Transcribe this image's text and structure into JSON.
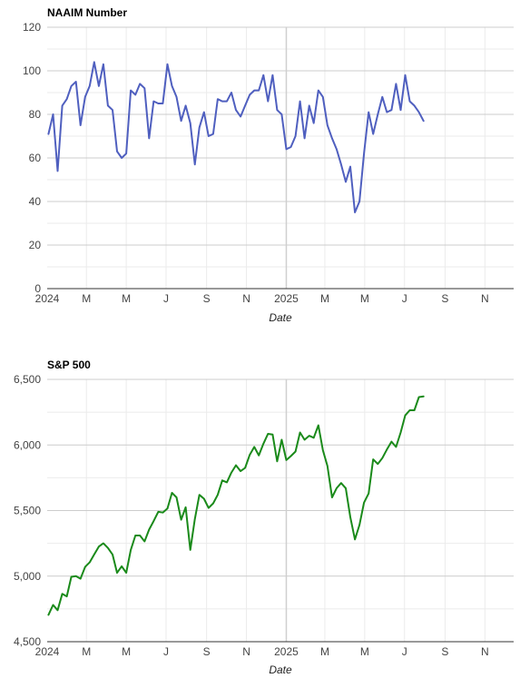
{
  "chart_data": [
    {
      "type": "line",
      "title": "NAAIM Number",
      "xlabel": "Date",
      "ylabel": "",
      "ylim": [
        0,
        120
      ],
      "yticks": [
        "0",
        "20",
        "40",
        "60",
        "80",
        "100",
        "120"
      ],
      "x_range": [
        "2024-01-01",
        "2025-12-15"
      ],
      "xticks": [
        {
          "label": "2024",
          "date": "2024-01-01"
        },
        {
          "label": "M",
          "date": "2024-03-01"
        },
        {
          "label": "M",
          "date": "2024-05-01"
        },
        {
          "label": "J",
          "date": "2024-07-01"
        },
        {
          "label": "S",
          "date": "2024-09-01"
        },
        {
          "label": "N",
          "date": "2024-11-01"
        },
        {
          "label": "2025",
          "date": "2025-01-01"
        },
        {
          "label": "M",
          "date": "2025-03-01"
        },
        {
          "label": "M",
          "date": "2025-05-01"
        },
        {
          "label": "J",
          "date": "2025-07-01"
        },
        {
          "label": "S",
          "date": "2025-09-01"
        },
        {
          "label": "N",
          "date": "2025-11-01"
        }
      ],
      "grid": true,
      "color": "#4f5fbf",
      "series": [
        {
          "x": [
            "2024-01-03",
            "2024-01-10",
            "2024-01-17",
            "2024-01-24",
            "2024-01-31",
            "2024-02-07",
            "2024-02-14",
            "2024-02-21",
            "2024-02-28",
            "2024-03-06",
            "2024-03-13",
            "2024-03-20",
            "2024-03-27",
            "2024-04-03",
            "2024-04-10",
            "2024-04-17",
            "2024-04-24",
            "2024-05-01",
            "2024-05-08",
            "2024-05-15",
            "2024-05-22",
            "2024-05-29",
            "2024-06-05",
            "2024-06-12",
            "2024-06-19",
            "2024-06-26",
            "2024-07-03",
            "2024-07-10",
            "2024-07-17",
            "2024-07-24",
            "2024-07-31",
            "2024-08-07",
            "2024-08-14",
            "2024-08-21",
            "2024-08-28",
            "2024-09-04",
            "2024-09-11",
            "2024-09-18",
            "2024-09-25",
            "2024-10-02",
            "2024-10-09",
            "2024-10-16",
            "2024-10-23",
            "2024-10-30",
            "2024-11-06",
            "2024-11-13",
            "2024-11-20",
            "2024-11-27",
            "2024-12-04",
            "2024-12-11",
            "2024-12-18",
            "2024-12-25",
            "2025-01-01",
            "2025-01-08",
            "2025-01-15",
            "2025-01-22",
            "2025-01-29",
            "2025-02-05",
            "2025-02-12",
            "2025-02-19",
            "2025-02-26",
            "2025-03-05",
            "2025-03-12",
            "2025-03-19",
            "2025-03-26",
            "2025-04-02",
            "2025-04-09",
            "2025-04-16",
            "2025-04-23",
            "2025-04-30",
            "2025-05-07",
            "2025-05-14",
            "2025-05-21",
            "2025-05-28",
            "2025-06-04",
            "2025-06-11",
            "2025-06-18",
            "2025-06-25",
            "2025-07-02",
            "2025-07-09",
            "2025-07-16",
            "2025-07-23",
            "2025-07-30"
          ],
          "values": [
            71,
            80,
            54,
            84,
            87,
            93,
            95,
            75,
            88,
            93,
            104,
            93,
            103,
            84,
            82,
            63,
            60,
            62,
            91,
            89,
            94,
            92,
            69,
            86,
            85,
            85,
            103,
            93,
            88,
            77,
            84,
            76,
            57,
            74,
            81,
            70,
            71,
            87,
            86,
            86,
            90,
            82,
            79,
            84,
            89,
            91,
            91,
            98,
            86,
            98,
            82,
            80,
            64,
            65,
            70,
            86,
            69,
            84,
            76,
            91,
            88,
            75,
            69,
            64,
            57,
            49,
            56,
            35,
            40,
            62,
            81,
            71,
            80,
            88,
            81,
            82,
            94,
            82,
            98,
            86,
            84,
            81,
            77
          ]
        }
      ]
    },
    {
      "type": "line",
      "title": "S&P 500",
      "xlabel": "Date",
      "ylabel": "",
      "ylim": [
        4500,
        6500
      ],
      "yticks": [
        "4,500",
        "5,000",
        "5,500",
        "6,000",
        "6,500"
      ],
      "x_range": [
        "2024-01-01",
        "2025-12-15"
      ],
      "xticks": [
        {
          "label": "2024",
          "date": "2024-01-01"
        },
        {
          "label": "M",
          "date": "2024-03-01"
        },
        {
          "label": "M",
          "date": "2024-05-01"
        },
        {
          "label": "J",
          "date": "2024-07-01"
        },
        {
          "label": "S",
          "date": "2024-09-01"
        },
        {
          "label": "N",
          "date": "2024-11-01"
        },
        {
          "label": "2025",
          "date": "2025-01-01"
        },
        {
          "label": "M",
          "date": "2025-03-01"
        },
        {
          "label": "M",
          "date": "2025-05-01"
        },
        {
          "label": "J",
          "date": "2025-07-01"
        },
        {
          "label": "S",
          "date": "2025-09-01"
        },
        {
          "label": "N",
          "date": "2025-11-01"
        }
      ],
      "grid": true,
      "color": "#1a8a1a",
      "series": [
        {
          "x": [
            "2024-01-03",
            "2024-01-10",
            "2024-01-17",
            "2024-01-24",
            "2024-01-31",
            "2024-02-07",
            "2024-02-14",
            "2024-02-21",
            "2024-02-28",
            "2024-03-06",
            "2024-03-13",
            "2024-03-20",
            "2024-03-27",
            "2024-04-03",
            "2024-04-10",
            "2024-04-17",
            "2024-04-24",
            "2024-05-01",
            "2024-05-08",
            "2024-05-15",
            "2024-05-22",
            "2024-05-29",
            "2024-06-05",
            "2024-06-12",
            "2024-06-19",
            "2024-06-26",
            "2024-07-03",
            "2024-07-10",
            "2024-07-17",
            "2024-07-24",
            "2024-07-31",
            "2024-08-07",
            "2024-08-14",
            "2024-08-21",
            "2024-08-28",
            "2024-09-04",
            "2024-09-11",
            "2024-09-18",
            "2024-09-25",
            "2024-10-02",
            "2024-10-09",
            "2024-10-16",
            "2024-10-23",
            "2024-10-30",
            "2024-11-06",
            "2024-11-13",
            "2024-11-20",
            "2024-11-27",
            "2024-12-04",
            "2024-12-11",
            "2024-12-18",
            "2024-12-25",
            "2025-01-01",
            "2025-01-08",
            "2025-01-15",
            "2025-01-22",
            "2025-01-29",
            "2025-02-05",
            "2025-02-12",
            "2025-02-19",
            "2025-02-26",
            "2025-03-05",
            "2025-03-12",
            "2025-03-19",
            "2025-03-26",
            "2025-04-02",
            "2025-04-09",
            "2025-04-16",
            "2025-04-23",
            "2025-04-30",
            "2025-05-07",
            "2025-05-14",
            "2025-05-21",
            "2025-05-28",
            "2025-06-04",
            "2025-06-11",
            "2025-06-18",
            "2025-06-25",
            "2025-07-02",
            "2025-07-09",
            "2025-07-16",
            "2025-07-23",
            "2025-07-30"
          ],
          "values": [
            4705,
            4780,
            4740,
            4865,
            4845,
            4995,
            5000,
            4980,
            5070,
            5105,
            5165,
            5225,
            5250,
            5215,
            5165,
            5025,
            5075,
            5025,
            5200,
            5310,
            5310,
            5265,
            5355,
            5420,
            5490,
            5485,
            5515,
            5635,
            5600,
            5430,
            5525,
            5200,
            5435,
            5620,
            5590,
            5520,
            5555,
            5620,
            5730,
            5715,
            5790,
            5845,
            5800,
            5825,
            5925,
            5985,
            5920,
            6010,
            6085,
            6080,
            5875,
            6040,
            5885,
            5915,
            5950,
            6095,
            6040,
            6070,
            6055,
            6150,
            5960,
            5840,
            5600,
            5670,
            5710,
            5670,
            5450,
            5280,
            5390,
            5560,
            5630,
            5890,
            5855,
            5900,
            5965,
            6025,
            5985,
            6095,
            6225,
            6265,
            6265,
            6365,
            6370
          ]
        }
      ]
    }
  ]
}
